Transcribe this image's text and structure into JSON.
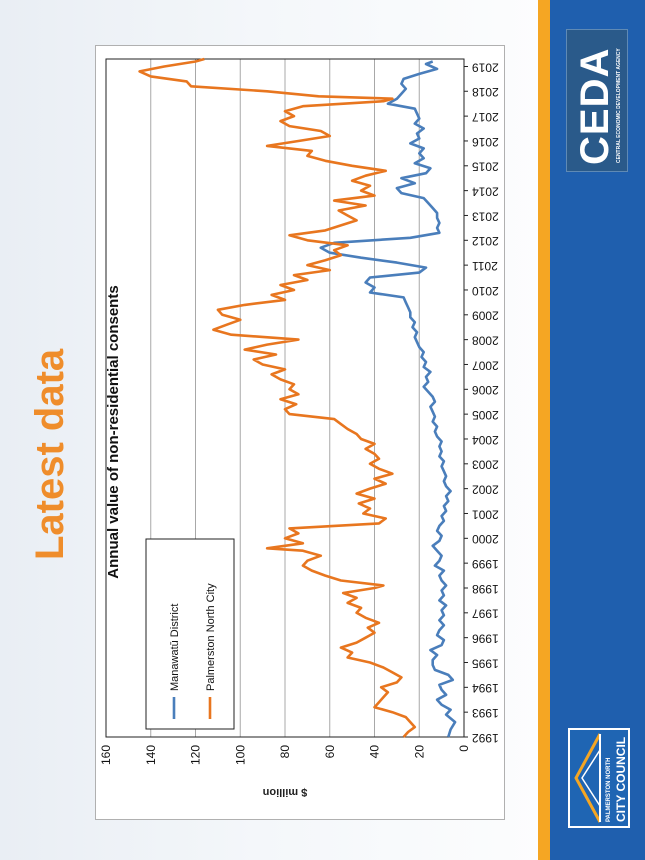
{
  "slide_title": "Latest data",
  "colors": {
    "accent": "#ef8d2b",
    "brand_blue": "#1f5fae"
  },
  "logos": {
    "ceda_main": "CEDA",
    "ceda_sub": "CENTRAL ECONOMIC DEVELOPMENT AGENCY",
    "pncc_line1": "PALMERSTON NORTH",
    "pncc_line2": "CITY COUNCIL"
  },
  "chart_data": {
    "type": "line",
    "title": "Annual value of non-residential consents",
    "xlabel": "",
    "ylabel": "$ million",
    "ylim": [
      0,
      160
    ],
    "yticks": [
      0,
      20,
      40,
      60,
      80,
      100,
      120,
      140,
      160
    ],
    "xlim": [
      1992,
      2019.3
    ],
    "xticks": [
      "1992",
      "1993",
      "1994",
      "1995",
      "1996",
      "1997",
      "1998",
      "1999",
      "2000",
      "2001",
      "2002",
      "2003",
      "2004",
      "2005",
      "2006",
      "2007",
      "2008",
      "2009",
      "2010",
      "2011",
      "2012",
      "2013",
      "2014",
      "2015",
      "2016",
      "2017",
      "2018",
      "2019"
    ],
    "grid": true,
    "legend": "left",
    "series": [
      {
        "name": "Manawatū District",
        "color": "#4a7ebb",
        "points": [
          [
            1992,
            7
          ],
          [
            1992.3,
            6
          ],
          [
            1992.6,
            4
          ],
          [
            1992.9,
            8
          ],
          [
            1993.1,
            6
          ],
          [
            1993.3,
            10
          ],
          [
            1993.5,
            12
          ],
          [
            1993.7,
            8
          ],
          [
            1993.9,
            10
          ],
          [
            1994.1,
            11
          ],
          [
            1994.3,
            5
          ],
          [
            1994.5,
            7
          ],
          [
            1994.7,
            13
          ],
          [
            1994.9,
            14
          ],
          [
            1995.1,
            14
          ],
          [
            1995.3,
            12
          ],
          [
            1995.5,
            15
          ],
          [
            1995.7,
            10
          ],
          [
            1995.9,
            9
          ],
          [
            1996.1,
            12
          ],
          [
            1996.3,
            11
          ],
          [
            1996.5,
            9
          ],
          [
            1996.7,
            11
          ],
          [
            1996.9,
            9
          ],
          [
            1997.1,
            10
          ],
          [
            1997.3,
            8
          ],
          [
            1997.5,
            11
          ],
          [
            1997.7,
            9
          ],
          [
            1997.9,
            10
          ],
          [
            1998.1,
            8
          ],
          [
            1998.3,
            10
          ],
          [
            1998.5,
            11
          ],
          [
            1998.7,
            9
          ],
          [
            1998.9,
            13
          ],
          [
            1999.1,
            11
          ],
          [
            1999.3,
            10
          ],
          [
            1999.5,
            12
          ],
          [
            1999.7,
            14
          ],
          [
            1999.9,
            11
          ],
          [
            2000.1,
            10
          ],
          [
            2000.3,
            12
          ],
          [
            2000.5,
            11
          ],
          [
            2000.7,
            9
          ],
          [
            2000.9,
            10
          ],
          [
            2001.1,
            8
          ],
          [
            2001.3,
            9
          ],
          [
            2001.5,
            7
          ],
          [
            2001.7,
            8
          ],
          [
            2001.9,
            6
          ],
          [
            2002.1,
            8
          ],
          [
            2002.3,
            9
          ],
          [
            2002.5,
            8
          ],
          [
            2002.7,
            9
          ],
          [
            2002.9,
            10
          ],
          [
            2003.1,
            9
          ],
          [
            2003.3,
            11
          ],
          [
            2003.5,
            10
          ],
          [
            2003.7,
            11
          ],
          [
            2003.9,
            10
          ],
          [
            2004.1,
            12
          ],
          [
            2004.3,
            13
          ],
          [
            2004.5,
            12
          ],
          [
            2004.7,
            14
          ],
          [
            2004.9,
            13
          ],
          [
            2005.1,
            14
          ],
          [
            2005.3,
            15
          ],
          [
            2005.5,
            13
          ],
          [
            2005.7,
            14
          ],
          [
            2005.9,
            16
          ],
          [
            2006.1,
            18
          ],
          [
            2006.3,
            16
          ],
          [
            2006.5,
            17
          ],
          [
            2006.7,
            15
          ],
          [
            2006.9,
            18
          ],
          [
            2007.1,
            17
          ],
          [
            2007.3,
            19
          ],
          [
            2007.5,
            18
          ],
          [
            2007.7,
            20
          ],
          [
            2007.9,
            21
          ],
          [
            2008.1,
            22
          ],
          [
            2008.3,
            21
          ],
          [
            2008.5,
            23
          ],
          [
            2008.7,
            22
          ],
          [
            2008.9,
            24
          ],
          [
            2009.1,
            24
          ],
          [
            2009.3,
            25
          ],
          [
            2009.5,
            26
          ],
          [
            2009.7,
            27
          ],
          [
            2009.9,
            42
          ],
          [
            2010.1,
            40
          ],
          [
            2010.3,
            44
          ],
          [
            2010.5,
            42
          ],
          [
            2010.7,
            20
          ],
          [
            2010.9,
            17
          ],
          [
            2011.1,
            30
          ],
          [
            2011.3,
            46
          ],
          [
            2011.5,
            60
          ],
          [
            2011.7,
            64
          ],
          [
            2011.9,
            58
          ],
          [
            2012.1,
            24
          ],
          [
            2012.3,
            11
          ],
          [
            2012.5,
            12
          ],
          [
            2012.7,
            11
          ],
          [
            2012.9,
            12
          ],
          [
            2013.1,
            12
          ],
          [
            2013.3,
            14
          ],
          [
            2013.5,
            16
          ],
          [
            2013.7,
            18
          ],
          [
            2013.9,
            28
          ],
          [
            2014.1,
            30
          ],
          [
            2014.3,
            22
          ],
          [
            2014.5,
            28
          ],
          [
            2014.7,
            17
          ],
          [
            2014.9,
            15
          ],
          [
            2015.1,
            22
          ],
          [
            2015.3,
            18
          ],
          [
            2015.5,
            20
          ],
          [
            2015.7,
            18
          ],
          [
            2015.9,
            24
          ],
          [
            2016.1,
            20
          ],
          [
            2016.3,
            21
          ],
          [
            2016.5,
            18
          ],
          [
            2016.7,
            22
          ],
          [
            2016.9,
            20
          ],
          [
            2017.1,
            21
          ],
          [
            2017.3,
            22
          ],
          [
            2017.5,
            34
          ],
          [
            2017.7,
            30
          ],
          [
            2017.9,
            28
          ],
          [
            2018.1,
            26
          ],
          [
            2018.3,
            28
          ],
          [
            2018.5,
            27
          ],
          [
            2018.7,
            20
          ],
          [
            2018.9,
            12
          ],
          [
            2019.1,
            17
          ],
          [
            2019.2,
            14
          ]
        ]
      },
      {
        "name": "Palmerston North City",
        "color": "#e8761f",
        "points": [
          [
            1992,
            27
          ],
          [
            1992.2,
            25
          ],
          [
            1992.4,
            22
          ],
          [
            1992.6,
            24
          ],
          [
            1992.8,
            26
          ],
          [
            1993,
            32
          ],
          [
            1993.2,
            40
          ],
          [
            1993.4,
            38
          ],
          [
            1993.6,
            36
          ],
          [
            1993.8,
            34
          ],
          [
            1994,
            37
          ],
          [
            1994.2,
            30
          ],
          [
            1994.4,
            28
          ],
          [
            1994.6,
            32
          ],
          [
            1994.8,
            36
          ],
          [
            1995,
            42
          ],
          [
            1995.2,
            52
          ],
          [
            1995.4,
            50
          ],
          [
            1995.6,
            55
          ],
          [
            1995.8,
            48
          ],
          [
            1996,
            44
          ],
          [
            1996.2,
            40
          ],
          [
            1996.4,
            43
          ],
          [
            1996.6,
            38
          ],
          [
            1996.8,
            44
          ],
          [
            1997,
            48
          ],
          [
            1997.2,
            46
          ],
          [
            1997.4,
            52
          ],
          [
            1997.6,
            48
          ],
          [
            1997.8,
            54
          ],
          [
            1998,
            40
          ],
          [
            1998.1,
            36
          ],
          [
            1998.3,
            55
          ],
          [
            1998.5,
            62
          ],
          [
            1998.7,
            68
          ],
          [
            1998.9,
            72
          ],
          [
            1999.1,
            70
          ],
          [
            1999.3,
            64
          ],
          [
            1999.5,
            72
          ],
          [
            1999.6,
            88
          ],
          [
            1999.8,
            72
          ],
          [
            2000,
            80
          ],
          [
            2000.2,
            74
          ],
          [
            2000.4,
            78
          ],
          [
            2000.6,
            38
          ],
          [
            2000.8,
            35
          ],
          [
            2001,
            45
          ],
          [
            2001.2,
            42
          ],
          [
            2001.4,
            47
          ],
          [
            2001.6,
            40
          ],
          [
            2001.8,
            48
          ],
          [
            2002,
            42
          ],
          [
            2002.2,
            35
          ],
          [
            2002.4,
            40
          ],
          [
            2002.6,
            32
          ],
          [
            2002.8,
            38
          ],
          [
            2003,
            42
          ],
          [
            2003.2,
            38
          ],
          [
            2003.4,
            40
          ],
          [
            2003.6,
            44
          ],
          [
            2003.8,
            40
          ],
          [
            2004,
            46
          ],
          [
            2004.2,
            48
          ],
          [
            2004.4,
            52
          ],
          [
            2004.6,
            55
          ],
          [
            2004.8,
            58
          ],
          [
            2005,
            78
          ],
          [
            2005.2,
            80
          ],
          [
            2005.4,
            75
          ],
          [
            2005.6,
            82
          ],
          [
            2005.8,
            74
          ],
          [
            2006,
            78
          ],
          [
            2006.2,
            76
          ],
          [
            2006.4,
            82
          ],
          [
            2006.6,
            86
          ],
          [
            2006.8,
            80
          ],
          [
            2007,
            90
          ],
          [
            2007.2,
            94
          ],
          [
            2007.4,
            84
          ],
          [
            2007.6,
            98
          ],
          [
            2007.8,
            88
          ],
          [
            2008,
            74
          ],
          [
            2008.2,
            104
          ],
          [
            2008.4,
            112
          ],
          [
            2008.6,
            106
          ],
          [
            2008.8,
            100
          ],
          [
            2009,
            108
          ],
          [
            2009.2,
            110
          ],
          [
            2009.4,
            98
          ],
          [
            2009.6,
            80
          ],
          [
            2009.8,
            86
          ],
          [
            2010,
            76
          ],
          [
            2010.2,
            82
          ],
          [
            2010.4,
            70
          ],
          [
            2010.6,
            76
          ],
          [
            2010.8,
            60
          ],
          [
            2011,
            70
          ],
          [
            2011.2,
            62
          ],
          [
            2011.4,
            55
          ],
          [
            2011.6,
            58
          ],
          [
            2011.8,
            52
          ],
          [
            2012,
            70
          ],
          [
            2012.2,
            78
          ],
          [
            2012.4,
            62
          ],
          [
            2012.6,
            55
          ],
          [
            2012.8,
            48
          ],
          [
            2013,
            52
          ],
          [
            2013.2,
            56
          ],
          [
            2013.4,
            44
          ],
          [
            2013.6,
            58
          ],
          [
            2013.8,
            40
          ],
          [
            2014,
            46
          ],
          [
            2014.2,
            42
          ],
          [
            2014.4,
            50
          ],
          [
            2014.6,
            44
          ],
          [
            2014.8,
            35
          ],
          [
            2015,
            50
          ],
          [
            2015.2,
            62
          ],
          [
            2015.4,
            70
          ],
          [
            2015.6,
            68
          ],
          [
            2015.8,
            88
          ],
          [
            2016,
            74
          ],
          [
            2016.2,
            60
          ],
          [
            2016.4,
            64
          ],
          [
            2016.6,
            78
          ],
          [
            2016.8,
            82
          ],
          [
            2017,
            76
          ],
          [
            2017.2,
            80
          ],
          [
            2017.4,
            72
          ],
          [
            2017.6,
            36
          ],
          [
            2017.7,
            32
          ],
          [
            2017.8,
            65
          ],
          [
            2018,
            88
          ],
          [
            2018.2,
            122
          ],
          [
            2018.4,
            124
          ],
          [
            2018.6,
            140
          ],
          [
            2018.8,
            145
          ],
          [
            2019,
            134
          ],
          [
            2019.2,
            120
          ],
          [
            2019.3,
            116
          ]
        ]
      }
    ]
  }
}
